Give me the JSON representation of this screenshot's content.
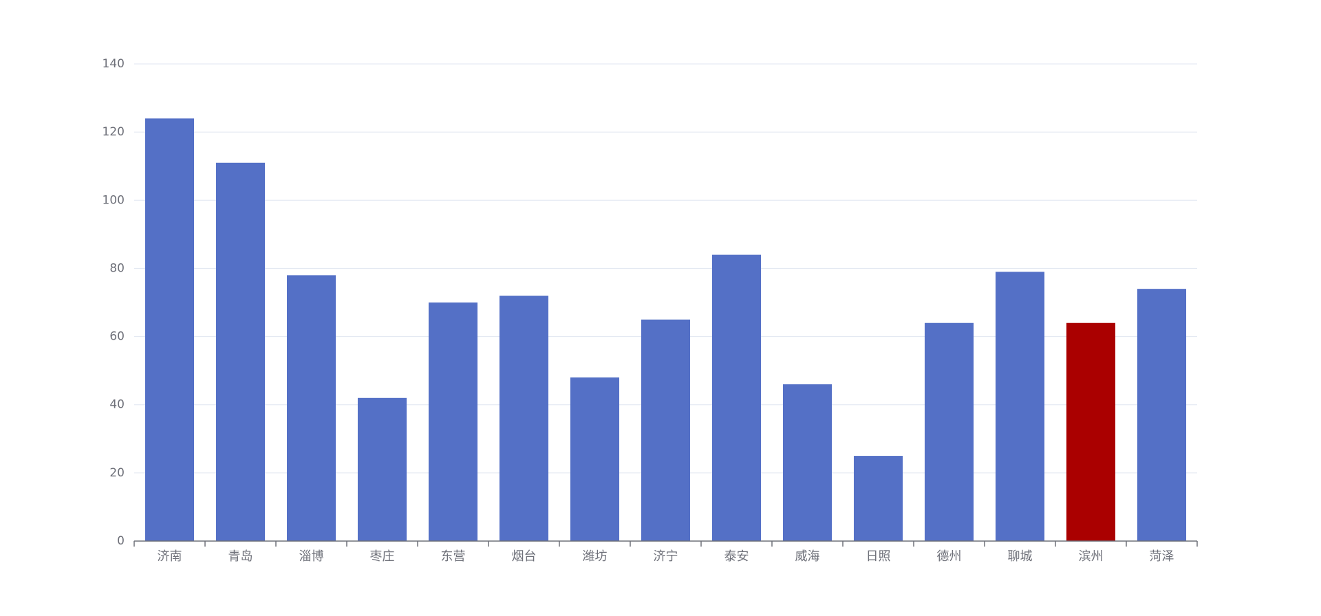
{
  "chart_data": {
    "type": "bar",
    "categories": [
      "济南",
      "青岛",
      "淄博",
      "枣庄",
      "东营",
      "烟台",
      "潍坊",
      "济宁",
      "泰安",
      "威海",
      "日照",
      "德州",
      "聊城",
      "滨州",
      "菏泽"
    ],
    "values": [
      124,
      111,
      78,
      42,
      70,
      72,
      48,
      65,
      84,
      46,
      25,
      64,
      79,
      64,
      74
    ],
    "highlight_category": "滨州",
    "ylim": [
      0,
      140
    ],
    "y_ticks": [
      0,
      20,
      40,
      60,
      80,
      100,
      120,
      140
    ],
    "grid": true,
    "title": "",
    "xlabel": "",
    "ylabel": ""
  },
  "colors": {
    "bar": "#5470c6",
    "highlight": "#aa0000",
    "grid": "#e0e6f1",
    "axis": "#6e7079",
    "label": "#6e7079"
  }
}
